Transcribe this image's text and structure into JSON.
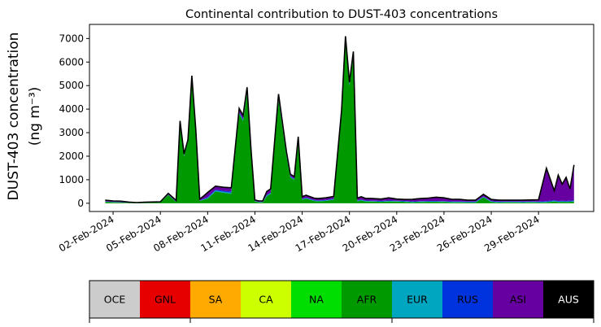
{
  "chart_data": {
    "type": "area",
    "stacked": true,
    "title": "Continental contribution to DUST-403 concentrations",
    "ylabel_line1": "DUST-403 concentration",
    "ylabel_line2": "(ng m⁻³)",
    "xlabel": "",
    "ylim": [
      -350,
      7600
    ],
    "yticks": [
      0,
      1000,
      2000,
      3000,
      4000,
      5000,
      6000,
      7000
    ],
    "xlim": [
      "2024-01-31T12:00",
      "2024-03-03T12:00"
    ],
    "xticks": [
      "02-Feb-2024",
      "05-Feb-2024",
      "08-Feb-2024",
      "11-Feb-2024",
      "14-Feb-2024",
      "17-Feb-2024",
      "20-Feb-2024",
      "23-Feb-2024",
      "26-Feb-2024",
      "29-Feb-2024"
    ],
    "grid": false,
    "total_line_color": "#000000",
    "x": [
      "2024-02-01T12:00",
      "2024-02-02T00:00",
      "2024-02-02T12:00",
      "2024-02-03T00:00",
      "2024-02-03T12:00",
      "2024-02-04T00:00",
      "2024-02-04T12:00",
      "2024-02-05T00:00",
      "2024-02-05T12:00",
      "2024-02-06T00:00",
      "2024-02-06T06:00",
      "2024-02-06T12:00",
      "2024-02-06T18:00",
      "2024-02-07T00:00",
      "2024-02-07T06:00",
      "2024-02-07T12:00",
      "2024-02-07T18:00",
      "2024-02-08T00:00",
      "2024-02-08T12:00",
      "2024-02-09T00:00",
      "2024-02-09T12:00",
      "2024-02-10T00:00",
      "2024-02-10T06:00",
      "2024-02-10T12:00",
      "2024-02-10T18:00",
      "2024-02-11T00:00",
      "2024-02-11T06:00",
      "2024-02-11T12:00",
      "2024-02-11T18:00",
      "2024-02-12T00:00",
      "2024-02-12T12:00",
      "2024-02-13T00:00",
      "2024-02-13T06:00",
      "2024-02-13T12:00",
      "2024-02-13T18:00",
      "2024-02-14T00:00",
      "2024-02-14T06:00",
      "2024-02-14T12:00",
      "2024-02-14T18:00",
      "2024-02-15T00:00",
      "2024-02-15T12:00",
      "2024-02-16T00:00",
      "2024-02-16T12:00",
      "2024-02-16T18:00",
      "2024-02-17T00:00",
      "2024-02-17T06:00",
      "2024-02-17T12:00",
      "2024-02-17T18:00",
      "2024-02-18T00:00",
      "2024-02-18T12:00",
      "2024-02-19T00:00",
      "2024-02-19T12:00",
      "2024-02-20T00:00",
      "2024-02-20T12:00",
      "2024-02-21T00:00",
      "2024-02-21T12:00",
      "2024-02-22T00:00",
      "2024-02-22T12:00",
      "2024-02-23T00:00",
      "2024-02-23T12:00",
      "2024-02-24T00:00",
      "2024-02-24T12:00",
      "2024-02-25T00:00",
      "2024-02-25T12:00",
      "2024-02-26T00:00",
      "2024-02-26T12:00",
      "2024-02-27T00:00",
      "2024-02-27T12:00",
      "2024-02-28T00:00",
      "2024-02-28T12:00",
      "2024-02-29T00:00",
      "2024-02-29T12:00",
      "2024-03-01T00:00",
      "2024-03-01T06:00",
      "2024-03-01T12:00",
      "2024-03-01T18:00",
      "2024-03-02T00:00",
      "2024-03-02T06:00"
    ],
    "series": [
      {
        "name": "OCE",
        "color": "#cccccc",
        "values": [
          0,
          0,
          0,
          0,
          0,
          0,
          0,
          0,
          0,
          0,
          0,
          0,
          0,
          0,
          0,
          0,
          0,
          0,
          0,
          0,
          0,
          0,
          0,
          0,
          0,
          0,
          0,
          0,
          0,
          0,
          0,
          0,
          0,
          0,
          0,
          0,
          0,
          0,
          0,
          0,
          0,
          0,
          0,
          0,
          0,
          0,
          0,
          0,
          0,
          0,
          0,
          0,
          0,
          0,
          0,
          0,
          0,
          0,
          0,
          0,
          0,
          0,
          0,
          0,
          0,
          0,
          0,
          0,
          0,
          0,
          0,
          0,
          0,
          0,
          0,
          0,
          0,
          0
        ]
      },
      {
        "name": "GNL",
        "color": "#e60000",
        "values": [
          0,
          0,
          0,
          0,
          0,
          0,
          0,
          0,
          0,
          0,
          0,
          0,
          0,
          0,
          0,
          0,
          0,
          0,
          0,
          0,
          0,
          0,
          0,
          0,
          0,
          0,
          0,
          0,
          0,
          0,
          0,
          0,
          0,
          0,
          0,
          0,
          0,
          0,
          0,
          0,
          0,
          0,
          0,
          0,
          0,
          0,
          0,
          0,
          0,
          0,
          0,
          0,
          0,
          0,
          0,
          0,
          0,
          0,
          0,
          0,
          0,
          0,
          0,
          0,
          0,
          0,
          0,
          0,
          0,
          0,
          0,
          0,
          0,
          0,
          0,
          0,
          0,
          0
        ]
      },
      {
        "name": "SA",
        "color": "#ffaa00",
        "values": [
          0,
          0,
          0,
          0,
          0,
          0,
          0,
          0,
          0,
          0,
          0,
          0,
          0,
          0,
          0,
          0,
          0,
          0,
          0,
          0,
          0,
          0,
          0,
          0,
          0,
          0,
          0,
          0,
          0,
          0,
          0,
          0,
          0,
          0,
          0,
          0,
          0,
          0,
          0,
          0,
          0,
          0,
          0,
          0,
          0,
          0,
          0,
          0,
          0,
          0,
          0,
          0,
          0,
          0,
          0,
          0,
          0,
          0,
          0,
          0,
          0,
          0,
          0,
          0,
          0,
          0,
          0,
          0,
          0,
          0,
          0,
          0,
          0,
          0,
          0,
          0,
          0,
          0
        ]
      },
      {
        "name": "CA",
        "color": "#ccff00",
        "values": [
          0,
          0,
          0,
          0,
          0,
          0,
          0,
          0,
          0,
          0,
          0,
          0,
          0,
          0,
          0,
          0,
          0,
          0,
          0,
          0,
          0,
          0,
          0,
          0,
          0,
          0,
          0,
          0,
          0,
          0,
          0,
          0,
          0,
          0,
          0,
          0,
          0,
          0,
          0,
          0,
          0,
          0,
          0,
          0,
          0,
          0,
          0,
          0,
          0,
          0,
          0,
          0,
          0,
          0,
          0,
          0,
          0,
          0,
          0,
          0,
          0,
          0,
          0,
          0,
          0,
          0,
          0,
          0,
          0,
          0,
          0,
          0,
          0,
          0,
          0,
          0,
          0,
          0
        ]
      },
      {
        "name": "NA",
        "color": "#00dd00",
        "values": [
          0,
          0,
          0,
          0,
          0,
          0,
          0,
          0,
          0,
          0,
          0,
          0,
          0,
          0,
          0,
          0,
          0,
          0,
          0,
          0,
          0,
          0,
          0,
          0,
          0,
          0,
          0,
          0,
          0,
          0,
          0,
          0,
          0,
          0,
          0,
          0,
          0,
          0,
          0,
          0,
          0,
          0,
          0,
          0,
          0,
          0,
          0,
          0,
          0,
          0,
          0,
          0,
          0,
          0,
          0,
          0,
          0,
          0,
          0,
          0,
          0,
          0,
          0,
          0,
          0,
          0,
          0,
          0,
          0,
          0,
          0,
          0,
          0,
          0,
          0,
          0,
          0,
          0
        ]
      },
      {
        "name": "AFR",
        "color": "#009900",
        "values": [
          60,
          40,
          30,
          20,
          10,
          20,
          30,
          40,
          350,
          50,
          3400,
          2000,
          2600,
          5300,
          3000,
          100,
          150,
          200,
          500,
          450,
          400,
          3800,
          3500,
          4700,
          2200,
          80,
          40,
          40,
          300,
          400,
          4400,
          2000,
          1100,
          1000,
          2700,
          150,
          200,
          150,
          100,
          80,
          100,
          150,
          3800,
          6900,
          5000,
          6300,
          80,
          120,
          80,
          70,
          60,
          80,
          70,
          60,
          40,
          50,
          60,
          60,
          50,
          40,
          40,
          30,
          30,
          250,
          50,
          30,
          40,
          40,
          30,
          40,
          30,
          40,
          80,
          50,
          60,
          50,
          60,
          80
        ]
      },
      {
        "name": "EUR",
        "color": "#00a5c0",
        "values": [
          10,
          10,
          10,
          5,
          5,
          5,
          5,
          5,
          10,
          10,
          30,
          20,
          20,
          40,
          30,
          10,
          20,
          30,
          40,
          40,
          50,
          40,
          40,
          40,
          20,
          10,
          10,
          10,
          30,
          30,
          40,
          30,
          20,
          20,
          20,
          20,
          20,
          20,
          20,
          20,
          20,
          20,
          30,
          40,
          30,
          30,
          20,
          20,
          20,
          20,
          20,
          20,
          20,
          20,
          20,
          20,
          20,
          20,
          20,
          20,
          20,
          20,
          20,
          20,
          20,
          20,
          20,
          20,
          20,
          20,
          20,
          20,
          20,
          20,
          20,
          20,
          20,
          20
        ]
      },
      {
        "name": "RUS",
        "color": "#0033dd",
        "values": [
          10,
          10,
          10,
          5,
          5,
          5,
          5,
          5,
          10,
          10,
          20,
          20,
          20,
          20,
          20,
          10,
          20,
          30,
          40,
          40,
          50,
          40,
          40,
          40,
          20,
          10,
          10,
          10,
          30,
          30,
          40,
          30,
          20,
          20,
          20,
          20,
          20,
          20,
          20,
          20,
          20,
          20,
          20,
          30,
          20,
          20,
          20,
          20,
          20,
          20,
          20,
          20,
          20,
          20,
          20,
          20,
          20,
          20,
          20,
          20,
          20,
          20,
          20,
          20,
          20,
          20,
          20,
          20,
          20,
          20,
          20,
          30,
          30,
          30,
          30,
          30,
          30,
          30
        ]
      },
      {
        "name": "ASI",
        "color": "#6600a0",
        "values": [
          50,
          40,
          40,
          20,
          10,
          15,
          15,
          15,
          50,
          50,
          50,
          60,
          60,
          60,
          60,
          60,
          120,
          200,
          150,
          150,
          160,
          150,
          150,
          150,
          80,
          40,
          40,
          40,
          140,
          150,
          160,
          140,
          100,
          90,
          90,
          90,
          100,
          90,
          80,
          80,
          90,
          100,
          100,
          130,
          100,
          100,
          100,
          120,
          90,
          90,
          80,
          110,
          70,
          60,
          90,
          110,
          120,
          160,
          140,
          90,
          90,
          60,
          60,
          90,
          70,
          60,
          50,
          50,
          60,
          60,
          80,
          1400,
          400,
          1100,
          700,
          1000,
          500,
          1500
        ]
      },
      {
        "name": "AUS",
        "color": "#000000",
        "values": [
          0,
          0,
          0,
          0,
          0,
          0,
          0,
          0,
          0,
          0,
          0,
          0,
          0,
          0,
          0,
          0,
          0,
          0,
          0,
          0,
          0,
          0,
          0,
          0,
          0,
          0,
          0,
          0,
          0,
          0,
          0,
          0,
          0,
          0,
          0,
          0,
          0,
          0,
          0,
          0,
          0,
          0,
          0,
          0,
          0,
          0,
          0,
          0,
          0,
          0,
          0,
          0,
          0,
          0,
          0,
          0,
          0,
          0,
          0,
          0,
          0,
          0,
          0,
          0,
          0,
          0,
          0,
          0,
          0,
          0,
          0,
          0,
          0,
          0,
          0,
          0,
          0,
          0
        ]
      }
    ]
  },
  "legend": {
    "items": [
      {
        "label": "OCE",
        "color": "#cccccc",
        "text_color": "#000000"
      },
      {
        "label": "GNL",
        "color": "#e60000",
        "text_color": "#000000"
      },
      {
        "label": "SA",
        "color": "#ffaa00",
        "text_color": "#000000"
      },
      {
        "label": "CA",
        "color": "#ccff00",
        "text_color": "#000000"
      },
      {
        "label": "NA",
        "color": "#00dd00",
        "text_color": "#000000"
      },
      {
        "label": "AFR",
        "color": "#009900",
        "text_color": "#000000"
      },
      {
        "label": "EUR",
        "color": "#00a5c0",
        "text_color": "#000000"
      },
      {
        "label": "RUS",
        "color": "#0033dd",
        "text_color": "#000000"
      },
      {
        "label": "ASI",
        "color": "#6600a0",
        "text_color": "#000000"
      },
      {
        "label": "AUS",
        "color": "#000000",
        "text_color": "#ffffff"
      }
    ]
  }
}
